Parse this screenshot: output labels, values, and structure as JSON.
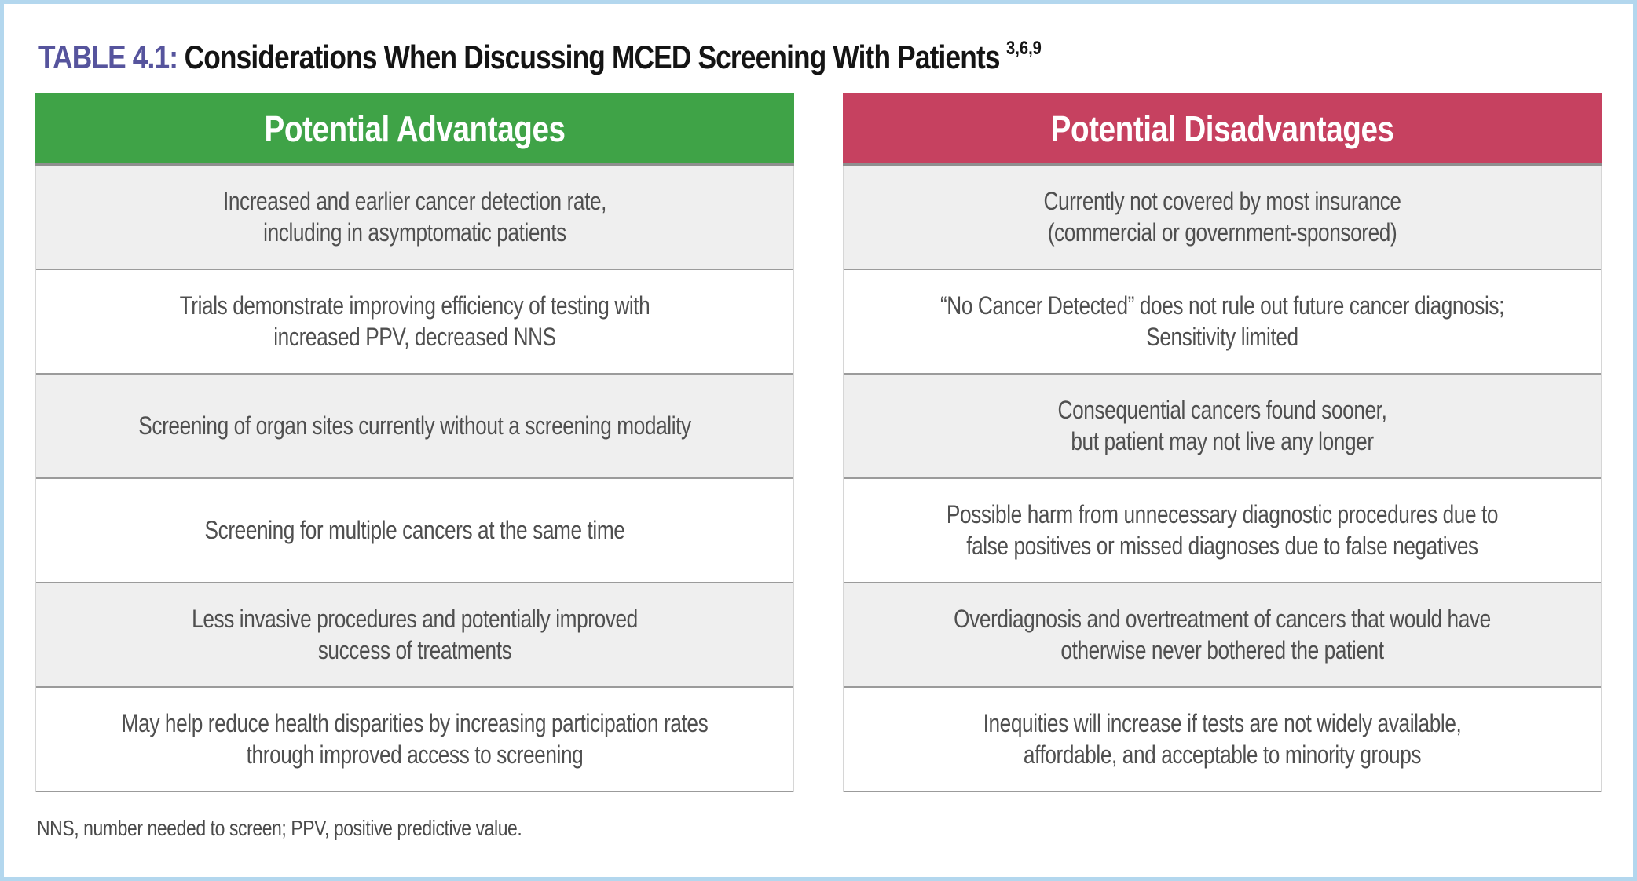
{
  "page": {
    "title_label": "TABLE 4.1:",
    "title_text": "Considerations When Discussing MCED Screening With Patients",
    "title_superscript": "3,6,9",
    "footnote": "NNS, number needed to screen; PPV, positive predictive value."
  },
  "colors": {
    "advantages_header_bg": "#3fa347",
    "disadvantages_header_bg": "#c64160",
    "alt_row_bg": "#efefef",
    "title_accent": "#56549d",
    "page_border": "#b3d7ee",
    "body_text": "#4f4f4f",
    "row_divider": "#9b9b9b"
  },
  "table": {
    "columns": [
      {
        "key": "advantages",
        "label": "Potential Advantages"
      },
      {
        "key": "disadvantages",
        "label": "Potential Disadvantages"
      }
    ],
    "advantages": [
      "Increased and earlier cancer detection rate,\nincluding in asymptomatic patients",
      "Trials demonstrate improving efficiency of testing with\nincreased PPV, decreased NNS",
      "Screening of organ sites currently without a screening modality",
      "Screening for multiple cancers at the same time",
      "Less invasive procedures and potentially improved\nsuccess of treatments",
      "May help reduce health disparities by increasing participation rates\nthrough improved access to screening"
    ],
    "disadvantages": [
      "Currently not covered by most insurance\n(commercial or government-sponsored)",
      "“No Cancer Detected” does not rule out future cancer diagnosis;\nSensitivity limited",
      "Consequential cancers found sooner,\nbut patient may not live any longer",
      "Possible harm from unnecessary diagnostic procedures due to\nfalse positives or missed diagnoses due to false negatives",
      "Overdiagnosis and overtreatment of cancers that would have\notherwise never bothered the patient",
      "Inequities will increase if tests are not widely available,\naffordable, and acceptable to minority groups"
    ]
  }
}
